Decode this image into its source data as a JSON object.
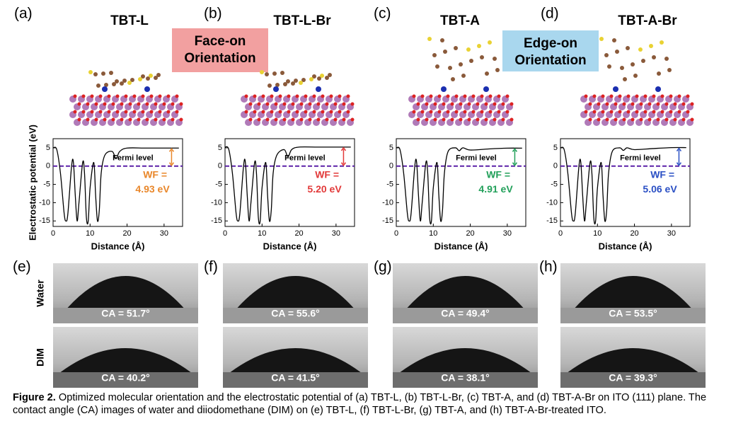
{
  "panels": [
    {
      "label": "(a)",
      "title": "TBT-L"
    },
    {
      "label": "(b)",
      "title": "TBT-L-Br"
    },
    {
      "label": "(c)",
      "title": "TBT-A"
    },
    {
      "label": "(d)",
      "title": "TBT-A-Br"
    }
  ],
  "badges": [
    {
      "lines": [
        "Face-on",
        "Orientation"
      ],
      "color": "#f2a0a0"
    },
    {
      "lines": [
        "Edge-on",
        "Orientation"
      ],
      "color": "#a9d7ee"
    }
  ],
  "chart_data": [
    {
      "type": "line",
      "ylabel": "Electrostatic potential (eV)",
      "xlabel": "Distance (Å)",
      "annotation": "Fermi level",
      "wf_label": "WF =",
      "wf_value": "4.93 eV",
      "wf_color": "#e9872a",
      "color": "#000000",
      "fermi_level": 0,
      "fermi_color": "#5b21a8",
      "xlim": [
        0,
        35
      ],
      "ylim": [
        -16.5,
        7.5
      ],
      "xticks": [
        0,
        10,
        20,
        30
      ],
      "yticks": [
        5,
        0,
        -5,
        -10,
        -15
      ],
      "x": [
        0,
        1,
        2,
        3,
        3.5,
        4,
        5,
        5.5,
        6,
        6.5,
        7,
        8,
        8.5,
        9,
        9.5,
        10,
        11,
        11.5,
        12,
        12.5,
        13,
        14,
        16,
        17,
        18,
        20,
        25,
        30,
        34
      ],
      "values": [
        5,
        4.5,
        -2,
        -13,
        -15,
        -13,
        0,
        1,
        -8,
        -15,
        -10,
        1,
        -2,
        -14,
        -15,
        -6,
        1,
        -8,
        -15,
        -12,
        -2,
        3,
        4,
        2,
        4,
        4.93,
        4.93,
        4.93,
        4.93
      ]
    },
    {
      "type": "line",
      "xlabel": "Distance (Å)",
      "annotation": "Fermi level",
      "wf_label": "WF =",
      "wf_value": "5.20 eV",
      "wf_color": "#e23a3a",
      "color": "#000000",
      "fermi_level": 0,
      "fermi_color": "#5b21a8",
      "xlim": [
        0,
        35
      ],
      "ylim": [
        -16.5,
        7.5
      ],
      "xticks": [
        0,
        10,
        20,
        30
      ],
      "yticks": [
        5,
        0,
        -5,
        -10,
        -15
      ],
      "x": [
        0,
        1,
        2,
        3,
        3.5,
        4,
        5,
        5.5,
        6,
        6.5,
        7,
        8,
        8.5,
        9,
        9.5,
        10,
        11,
        11.5,
        12,
        12.5,
        13,
        14,
        16,
        17,
        18,
        20,
        25,
        30,
        34
      ],
      "values": [
        5.2,
        4.6,
        -2,
        -13,
        -15,
        -13,
        0,
        1,
        -8,
        -15,
        -10,
        1,
        -2,
        -14,
        -15,
        -6,
        1,
        -8,
        -15,
        -12,
        -2,
        3,
        4.5,
        2.5,
        4.5,
        5.2,
        5.2,
        5.2,
        5.2
      ]
    },
    {
      "type": "line",
      "xlabel": "Distance (Å)",
      "annotation": "Fermi level",
      "wf_label": "WF =",
      "wf_value": "4.91 eV",
      "wf_color": "#22a05a",
      "color": "#000000",
      "fermi_level": 0,
      "fermi_color": "#5b21a8",
      "xlim": [
        0,
        35
      ],
      "ylim": [
        -16.5,
        7.5
      ],
      "xticks": [
        0,
        10,
        20,
        30
      ],
      "yticks": [
        5,
        0,
        -5,
        -10,
        -15
      ],
      "x": [
        0,
        1,
        2,
        3,
        3.5,
        4,
        5,
        5.5,
        6,
        6.5,
        7,
        8,
        8.5,
        9,
        9.5,
        10,
        11,
        11.5,
        12,
        12.5,
        13,
        14,
        16,
        17,
        18,
        20,
        25,
        30,
        34
      ],
      "values": [
        5,
        4.5,
        -2,
        -13,
        -15,
        -13,
        0,
        1,
        -8,
        -15,
        -10,
        1,
        -2,
        -14,
        -15,
        -6,
        1,
        -8,
        -15,
        -12,
        -2,
        4,
        5,
        4.2,
        5,
        4.4,
        4.7,
        4.91,
        4.91
      ]
    },
    {
      "type": "line",
      "xlabel": "Distance (Å)",
      "annotation": "Fermi level",
      "wf_label": "WF =",
      "wf_value": "5.06 eV",
      "wf_color": "#2a4fc4",
      "color": "#000000",
      "fermi_level": 0,
      "fermi_color": "#5b21a8",
      "xlim": [
        0,
        35
      ],
      "ylim": [
        -16.5,
        7.5
      ],
      "xticks": [
        0,
        10,
        20,
        30
      ],
      "yticks": [
        5,
        0,
        -5,
        -10,
        -15
      ],
      "x": [
        0,
        1,
        2,
        3,
        3.5,
        4,
        5,
        5.5,
        6,
        6.5,
        7,
        8,
        8.5,
        9,
        9.5,
        10,
        11,
        11.5,
        12,
        12.5,
        13,
        14,
        16,
        17,
        18,
        20,
        25,
        30,
        34
      ],
      "values": [
        5,
        4.5,
        -2,
        -13,
        -15,
        -13,
        0,
        1,
        -8,
        -15,
        -10,
        1,
        -2,
        -14,
        -15,
        -6,
        1,
        -8,
        -15,
        -12,
        -2,
        4,
        5,
        4.3,
        5,
        4.5,
        4.8,
        5.06,
        5.06
      ]
    }
  ],
  "photos": {
    "row_labels": [
      "Water",
      "DIM"
    ],
    "panels": [
      {
        "label": "(e)",
        "water": "CA = 51.7°",
        "dim": "CA = 40.2°"
      },
      {
        "label": "(f)",
        "water": "CA = 55.6°",
        "dim": "CA = 41.5°"
      },
      {
        "label": "(g)",
        "water": "CA = 49.4°",
        "dim": "CA = 38.1°"
      },
      {
        "label": "(h)",
        "water": "CA = 53.5°",
        "dim": "CA = 39.3°"
      }
    ]
  },
  "caption": {
    "label": "Figure 2.",
    "text": "Optimized molecular orientation and the electrostatic potential of (a) TBT-L, (b) TBT-L-Br, (c) TBT-A, and (d) TBT-A-Br on ITO (111) plane. The contact angle (CA) images of water and diiodomethane (DIM) on (e) TBT-L, (f) TBT-L-Br, (g) TBT-A, and (h) TBT-A-Br-treated ITO."
  }
}
